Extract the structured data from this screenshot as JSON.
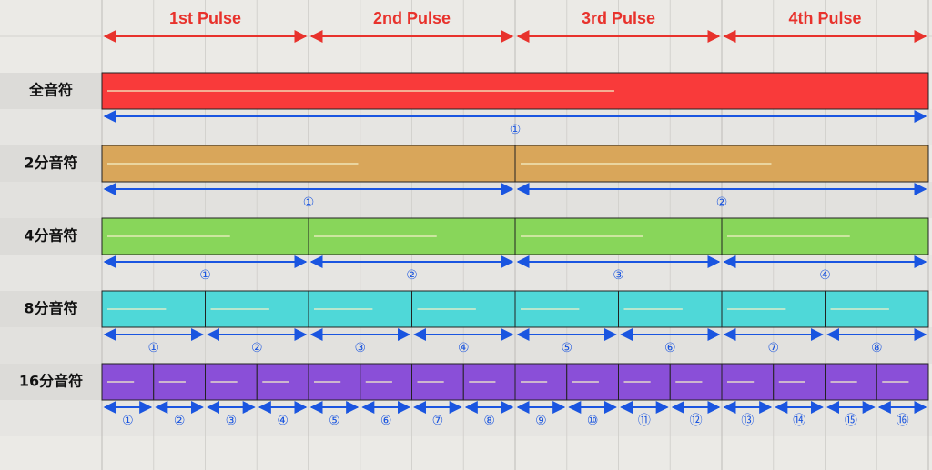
{
  "header": {
    "pulses": [
      "1st Pulse",
      "2nd Pulse",
      "3rd Pulse",
      "4th Pulse"
    ]
  },
  "rows": [
    {
      "label": "全音符",
      "color": "#f93a3a",
      "markers": [
        "①"
      ]
    },
    {
      "label": "2分音符",
      "color": "#d9a65a",
      "markers": [
        "①",
        "②"
      ]
    },
    {
      "label": "4分音符",
      "color": "#88d65a",
      "markers": [
        "①",
        "②",
        "③",
        "④"
      ]
    },
    {
      "label": "8分音符",
      "color": "#4fd8d8",
      "markers": [
        "①",
        "②",
        "③",
        "④",
        "⑤",
        "⑥",
        "⑦",
        "⑧"
      ]
    },
    {
      "label": "16分音符",
      "color": "#8a4fd8",
      "markers": [
        "①",
        "②",
        "③",
        "④",
        "⑤",
        "⑥",
        "⑦",
        "⑧",
        "⑨",
        "⑩",
        "⑪",
        "⑫",
        "⑬",
        "⑭",
        "⑮",
        "⑯"
      ]
    }
  ]
}
